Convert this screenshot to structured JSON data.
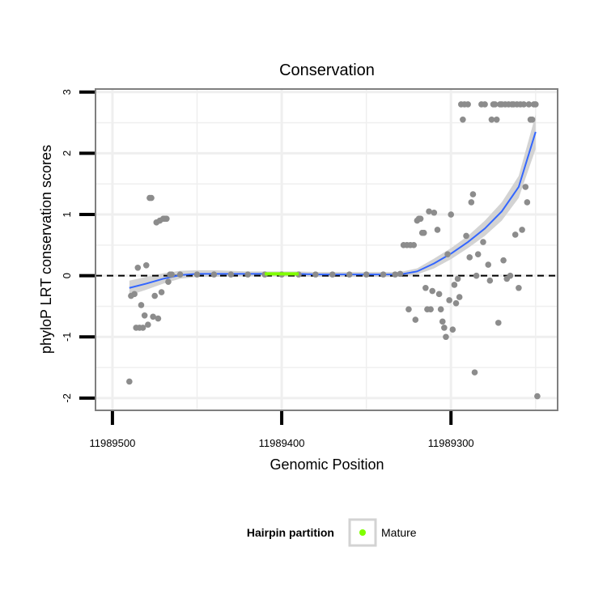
{
  "chart_data": {
    "type": "scatter",
    "title": "Conservation",
    "xlabel": "Genomic Position",
    "ylabel": "phyloP LRT conservation scores",
    "x_reversed": true,
    "xlim": [
      11989510,
      11989237
    ],
    "ylim": [
      -2.2,
      3.05
    ],
    "x_ticks": [
      11989500,
      11989400,
      11989300
    ],
    "x_tick_labels": [
      "11989500",
      "11989400",
      "11989300"
    ],
    "y_ticks": [
      -2,
      -1,
      0,
      1,
      2,
      3
    ],
    "y_tick_labels": [
      "-2",
      "-1",
      "0",
      "1",
      "2",
      "3"
    ],
    "grid": true,
    "reference_line": {
      "y": 0,
      "style": "dashed"
    },
    "colors": {
      "points": "#8c8c8c",
      "smooth_line": "#3366ff",
      "ribbon": "#d3d3d3",
      "mature": "#80ff00",
      "panel_border": "#7f7f7f",
      "grid": "#efefef"
    },
    "legend": {
      "title": "Hairpin partition",
      "items": [
        {
          "label": "Mature",
          "color": "#80ff00"
        }
      ],
      "placement": "bottom"
    },
    "mature_segment": {
      "x": [
        11989410,
        11989390
      ],
      "y": 0.03
    },
    "smooth": {
      "x": [
        11989490,
        11989480,
        11989470,
        11989460,
        11989450,
        11989440,
        11989430,
        11989420,
        11989410,
        11989400,
        11989390,
        11989380,
        11989370,
        11989360,
        11989350,
        11989340,
        11989330,
        11989320,
        11989310,
        11989300,
        11989290,
        11989280,
        11989270,
        11989260,
        11989250
      ],
      "y": [
        -0.2,
        -0.13,
        -0.05,
        0.01,
        0.03,
        0.03,
        0.03,
        0.03,
        0.03,
        0.03,
        0.03,
        0.02,
        0.02,
        0.02,
        0.02,
        0.02,
        0.02,
        0.07,
        0.2,
        0.36,
        0.55,
        0.77,
        1.05,
        1.45,
        2.35
      ],
      "lower": [
        -0.32,
        -0.23,
        -0.13,
        -0.05,
        -0.02,
        -0.02,
        -0.01,
        -0.01,
        -0.01,
        -0.01,
        -0.01,
        -0.02,
        -0.02,
        -0.02,
        -0.02,
        -0.02,
        -0.02,
        0.02,
        0.12,
        0.27,
        0.45,
        0.65,
        0.9,
        1.27,
        2.07
      ],
      "upper": [
        -0.08,
        -0.02,
        0.04,
        0.08,
        0.09,
        0.09,
        0.08,
        0.07,
        0.07,
        0.07,
        0.07,
        0.06,
        0.06,
        0.06,
        0.06,
        0.06,
        0.06,
        0.12,
        0.28,
        0.45,
        0.65,
        0.9,
        1.2,
        1.63,
        2.63
      ]
    },
    "points": {
      "x": [
        11989490,
        11989489,
        11989487,
        11989486,
        11989485,
        11989484,
        11989483,
        11989482,
        11989481,
        11989480,
        11989479,
        11989478,
        11989477,
        11989476,
        11989475,
        11989474,
        11989473,
        11989472,
        11989471,
        11989470,
        11989469,
        11989468,
        11989467,
        11989466,
        11989465,
        11989460,
        11989450,
        11989440,
        11989430,
        11989420,
        11989410,
        11989400,
        11989390,
        11989380,
        11989370,
        11989360,
        11989350,
        11989340,
        11989333,
        11989330,
        11989328,
        11989326,
        11989325,
        11989324,
        11989322,
        11989321,
        11989320,
        11989319,
        11989318,
        11989317,
        11989316,
        11989315,
        11989314,
        11989313,
        11989312,
        11989311,
        11989310,
        11989308,
        11989307,
        11989306,
        11989305,
        11989304,
        11989303,
        11989302,
        11989301,
        11989300,
        11989299,
        11989298,
        11989297,
        11989296,
        11989295,
        11989294,
        11989293,
        11989292,
        11989291,
        11989290,
        11989289,
        11989288,
        11989287,
        11989286,
        11989285,
        11989284,
        11989282,
        11989281,
        11989280,
        11989278,
        11989277,
        11989276,
        11989275,
        11989274,
        11989273,
        11989272,
        11989271,
        11989270,
        11989269,
        11989268,
        11989267,
        11989266,
        11989265,
        11989264,
        11989263,
        11989262,
        11989261,
        11989260,
        11989259,
        11989258,
        11989257,
        11989256,
        11989255,
        11989254,
        11989253,
        11989252,
        11989251,
        11989250,
        11989249
      ],
      "y": [
        -1.73,
        -0.33,
        -0.3,
        -0.85,
        0.13,
        -0.85,
        -0.48,
        -0.85,
        -0.65,
        0.17,
        -0.8,
        1.27,
        1.27,
        -0.67,
        -0.33,
        0.87,
        -0.7,
        0.9,
        -0.27,
        0.93,
        0.93,
        0.93,
        -0.1,
        0.02,
        0.02,
        0.02,
        0.02,
        0.02,
        0.02,
        0.02,
        0.02,
        0.02,
        0.02,
        0.02,
        0.02,
        0.02,
        0.02,
        0.02,
        0.02,
        0.03,
        0.5,
        0.5,
        -0.55,
        0.5,
        0.5,
        -0.72,
        0.9,
        0.93,
        0.93,
        0.7,
        0.7,
        -0.2,
        -0.55,
        1.05,
        -0.55,
        -0.25,
        1.03,
        0.75,
        -0.3,
        -0.55,
        -0.75,
        -0.85,
        -1.0,
        0.35,
        -0.4,
        1.0,
        -0.88,
        -0.15,
        -0.45,
        -0.05,
        -0.35,
        2.8,
        2.55,
        2.8,
        0.65,
        2.8,
        0.3,
        1.2,
        1.33,
        -1.58,
        0.0,
        0.35,
        2.8,
        0.55,
        2.8,
        0.18,
        -0.08,
        2.55,
        2.8,
        2.8,
        2.55,
        -0.77,
        2.8,
        2.8,
        0.25,
        2.8,
        -0.05,
        2.8,
        0.0,
        2.8,
        2.8,
        0.67,
        2.8,
        -0.2,
        2.8,
        0.75,
        2.8,
        1.45,
        1.2,
        2.8,
        2.55,
        2.55,
        2.8,
        2.8,
        -1.97
      ]
    }
  }
}
